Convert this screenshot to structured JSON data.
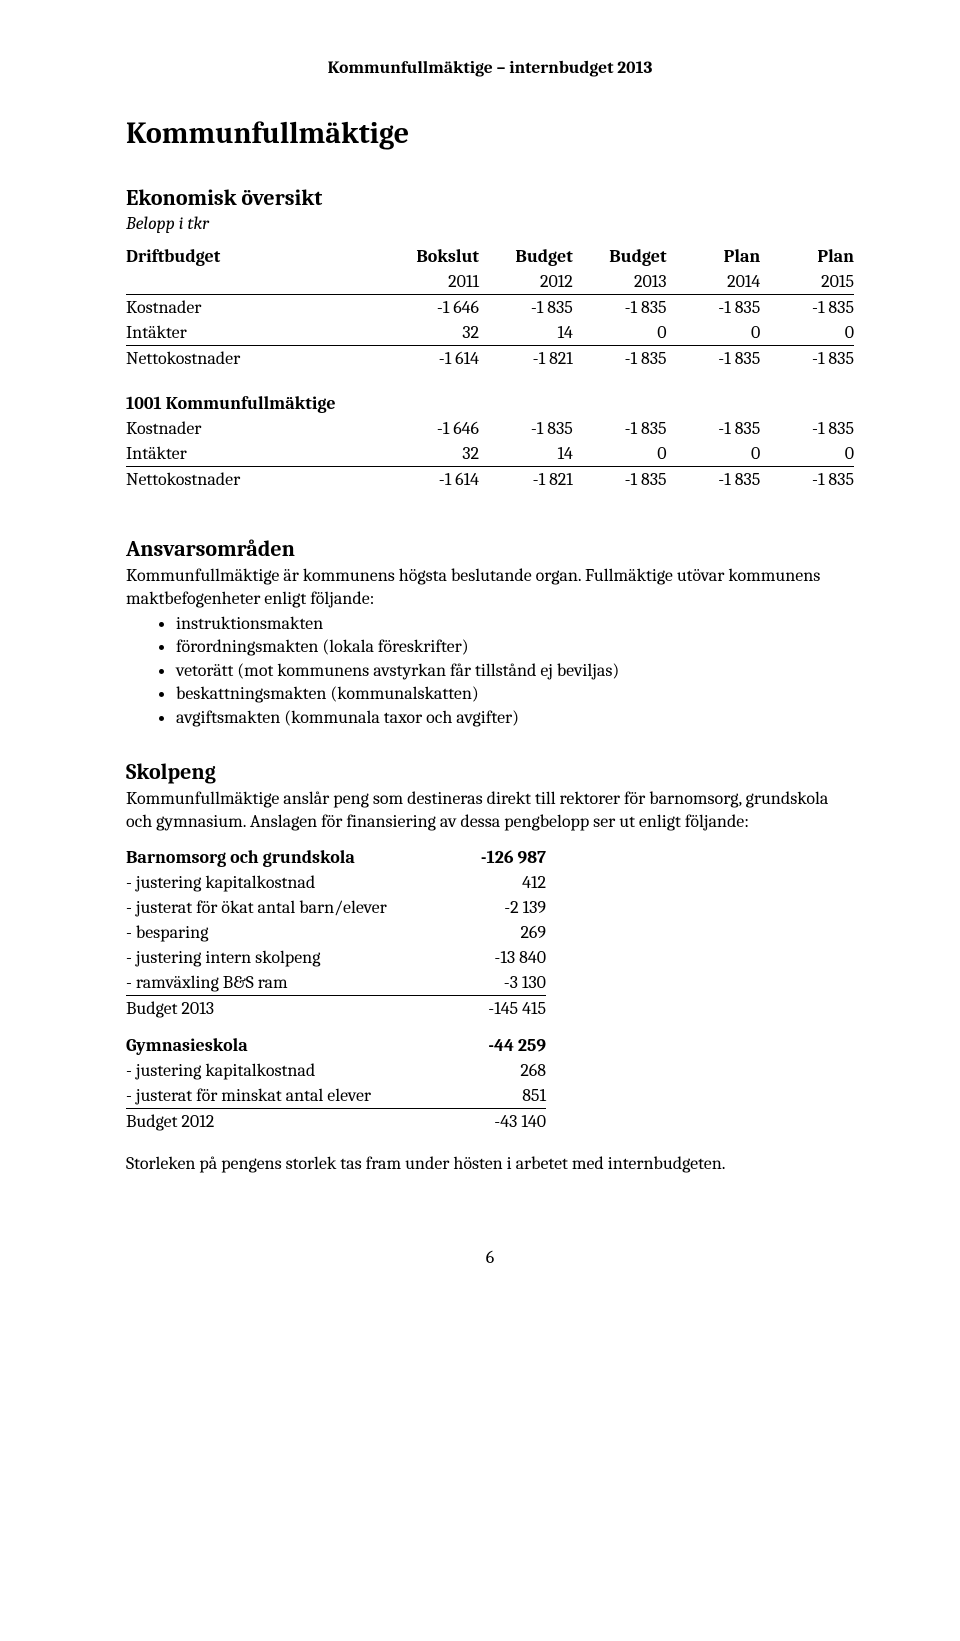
{
  "running_header": "Kommunfullmäktige – internbudget 2013",
  "title": "Kommunfullmäktige",
  "overview_heading": "Ekonomisk översikt",
  "overview_sub": "Belopp i tkr",
  "table": {
    "hdr1": [
      "Driftbudget",
      "Bokslut",
      "Budget",
      "Budget",
      "Plan",
      "Plan"
    ],
    "hdr2": [
      "",
      "2011",
      "2012",
      "2013",
      "2014",
      "2015"
    ],
    "rows1": [
      [
        "Kostnader",
        "-1 646",
        "-1 835",
        "-1 835",
        "-1 835",
        "-1 835"
      ],
      [
        "Intäkter",
        "32",
        "14",
        "0",
        "0",
        "0"
      ],
      [
        "Nettokostnader",
        "-1 614",
        "-1 821",
        "-1 835",
        "-1 835",
        "-1 835"
      ]
    ],
    "subhead": "1001 Kommunfullmäktige",
    "rows2": [
      [
        "Kostnader",
        "-1 646",
        "-1 835",
        "-1 835",
        "-1 835",
        "-1 835"
      ],
      [
        "Intäkter",
        "32",
        "14",
        "0",
        "0",
        "0"
      ],
      [
        "Nettokostnader",
        "-1 614",
        "-1 821",
        "-1 835",
        "-1 835",
        "-1 835"
      ]
    ]
  },
  "ansvar_heading": "Ansvarsområden",
  "ansvar_body": "Kommunfullmäktige är kommunens högsta beslutande organ. Fullmäktige utövar kommunens maktbefogenheter enligt följande:",
  "bullets": [
    "instruktionsmakten",
    "förordningsmakten (lokala föreskrifter)",
    "vetorätt (mot kommunens avstyrkan får tillstånd ej beviljas)",
    "beskattningsmakten (kommunalskatten)",
    "avgiftsmakten (kommunala taxor och avgifter)"
  ],
  "skolpeng_heading": "Skolpeng",
  "skolpeng_body": "Kommunfullmäktige anslår peng som destineras direkt till rektorer för barnomsorg, grundskola och gymnasium. Anslagen för finansiering av dessa pengbelopp ser ut enligt följande:",
  "adj1": {
    "head": [
      "Barnomsorg och grundskola",
      "-126 987"
    ],
    "rows": [
      [
        "- justering kapitalkostnad",
        "412"
      ],
      [
        "- justerat för ökat antal barn/elever",
        "-2 139"
      ],
      [
        "- besparing",
        "269"
      ],
      [
        "- justering intern skolpeng",
        "-13 840"
      ],
      [
        "- ramväxling B&S ram",
        "-3 130"
      ]
    ],
    "total": [
      "Budget 2013",
      "-145 415"
    ]
  },
  "adj2": {
    "head": [
      "Gymnasieskola",
      "-44 259"
    ],
    "rows": [
      [
        "- justering kapitalkostnad",
        "268"
      ],
      [
        "- justerat för minskat antal elever",
        "851"
      ]
    ],
    "total": [
      "Budget 2012",
      "-43 140"
    ]
  },
  "closing": "Storleken på pengens storlek tas fram under hösten i arbetet med internbudgeten.",
  "pagenum": "6"
}
